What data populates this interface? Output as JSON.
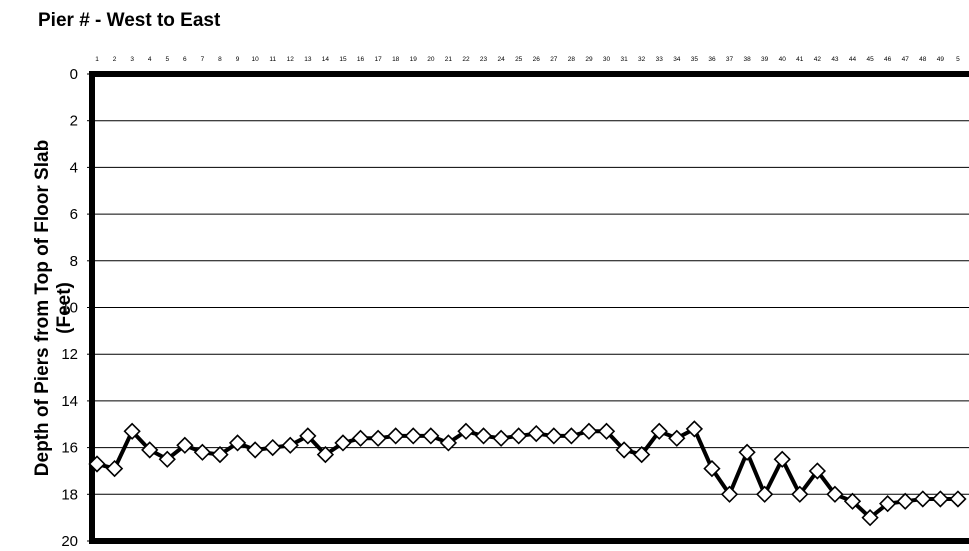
{
  "chart_data": {
    "type": "line",
    "title": "Pier # - West to East",
    "ylabel_line1": "Depth of Piers from Top of Floor Slab",
    "ylabel_line2": "(Feet)",
    "xlabel": "",
    "categories": [
      "1",
      "2",
      "3",
      "4",
      "5",
      "6",
      "7",
      "8",
      "9",
      "10",
      "11",
      "12",
      "13",
      "14",
      "15",
      "16",
      "17",
      "18",
      "19",
      "20",
      "21",
      "22",
      "23",
      "24",
      "25",
      "26",
      "27",
      "28",
      "29",
      "30",
      "31",
      "32",
      "33",
      "34",
      "35",
      "36",
      "37",
      "38",
      "39",
      "40",
      "41",
      "42",
      "43",
      "44",
      "45",
      "46",
      "47",
      "48",
      "49",
      "5"
    ],
    "series": [
      {
        "name": "",
        "values": [
          16.7,
          16.9,
          15.3,
          16.1,
          16.5,
          15.9,
          16.2,
          16.3,
          15.8,
          16.1,
          16.0,
          15.9,
          15.5,
          16.3,
          15.8,
          15.6,
          15.6,
          15.5,
          15.5,
          15.5,
          15.8,
          15.3,
          15.5,
          15.6,
          15.5,
          15.4,
          15.5,
          15.5,
          15.3,
          15.3,
          16.1,
          16.3,
          15.3,
          15.6,
          15.2,
          16.9,
          18.0,
          16.2,
          18.0,
          16.5,
          18.0,
          17.0,
          18.0,
          18.3,
          19.0,
          18.4,
          18.3,
          18.2,
          18.2,
          18.2
        ]
      }
    ],
    "y_ticks": [
      "0",
      "2",
      "4",
      "6",
      "8",
      "10",
      "12",
      "14",
      "16",
      "18",
      "20"
    ],
    "ylim": [
      0,
      20
    ],
    "y_inverted": true,
    "x_axis_position": "top",
    "marker": "diamond",
    "grid": true,
    "legend": "none",
    "colors": {
      "line": "#000000",
      "marker_fill": "#ffffff",
      "grid": "#000000",
      "frame": "#000000"
    }
  }
}
